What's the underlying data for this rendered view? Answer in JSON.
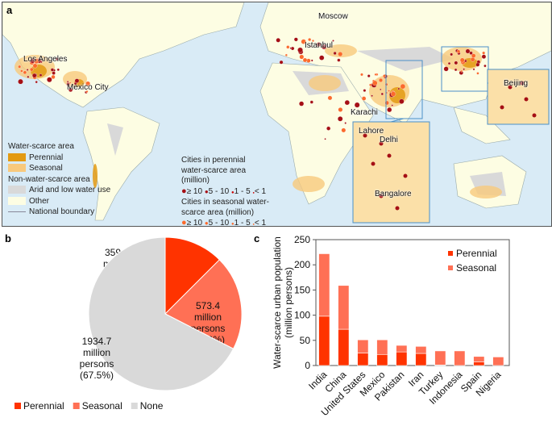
{
  "panels": {
    "a": "a",
    "b": "b",
    "c": "c"
  },
  "map": {
    "cities": [
      "Moscow",
      "Istanbul",
      "Los Angeles",
      "Mexico City",
      "Karachi",
      "Beijing",
      "Lahore",
      "Delhi",
      "Bangalore"
    ],
    "legend": {
      "water_scarce_title": "Water-scarce area",
      "perennial": "Perennial",
      "seasonal": "Seasonal",
      "non_scarce_title": "Non-water-scarce area",
      "arid": "Arid and low water use",
      "other": "Other",
      "boundary": "National boundary",
      "perennial_cities_title": "Cities in perennial water-scarce area (million)",
      "seasonal_cities_title": "Cities in seasonal water-scarce area (million)",
      "size_classes": [
        "≥ 10",
        "5 - 10",
        "1 - 5",
        "< 1"
      ]
    },
    "colors": {
      "ocean": "#d9ebf6",
      "land": "#fdfde3",
      "perennial": "#e39a12",
      "seasonal": "#f8c97c",
      "arid": "#d9d9d9",
      "perennial_city": "#a50f15",
      "seasonal_city": "#fb6a2c"
    }
  },
  "chart_data": [
    {
      "type": "pie",
      "slices": [
        {
          "name": "Perennial",
          "value": 359.3,
          "percent": 12.5,
          "label": "359.3 million persons (12.5%)",
          "color": "#ff3300"
        },
        {
          "name": "Seasonal",
          "value": 573.4,
          "percent": 20.0,
          "label": "573.4 million persons (20.0%)",
          "color": "#ff7055"
        },
        {
          "name": "None",
          "value": 1934.7,
          "percent": 67.5,
          "label": "1934.7 million persons (67.5%)",
          "color": "#d9d9d9"
        }
      ],
      "legend": [
        "Perennial",
        "Seasonal",
        "None"
      ],
      "legend_placement": "bottom"
    },
    {
      "type": "bar",
      "stacked": true,
      "categories": [
        "India",
        "China",
        "United States",
        "Mexico",
        "Pakistan",
        "Iran",
        "Turkey",
        "Indonesia",
        "Spain",
        "Nigeria"
      ],
      "series": [
        {
          "name": "Perennial",
          "values": [
            98,
            72,
            25,
            22,
            27,
            24,
            1,
            0,
            7,
            0
          ],
          "color": "#ff3300"
        },
        {
          "name": "Seasonal",
          "values": [
            124,
            87,
            26,
            29,
            13,
            14,
            28,
            29,
            11,
            17
          ],
          "color": "#ff7055"
        }
      ],
      "ylabel": "Water-scarce urban population (million persons)",
      "ylim": [
        0,
        250
      ],
      "yticks": [
        0,
        50,
        100,
        150,
        200,
        250
      ],
      "grid": false,
      "legend_placement": "top-right"
    }
  ]
}
